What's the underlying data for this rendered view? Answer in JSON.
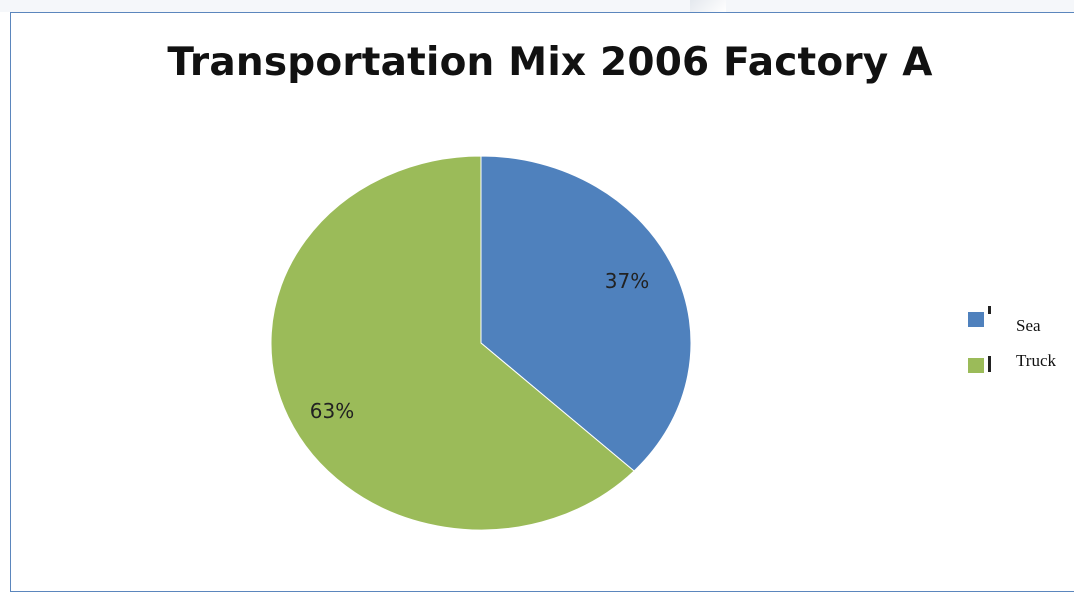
{
  "chart_data": {
    "type": "pie",
    "title": "Transportation Mix 2006 Factory A",
    "slices": [
      {
        "label": "Sea",
        "value": 37,
        "display": "37%",
        "color": "#4f81bd"
      },
      {
        "label": "Truck",
        "value": 63,
        "display": "63%",
        "color": "#9bbb59"
      }
    ],
    "legend_position": "right"
  }
}
